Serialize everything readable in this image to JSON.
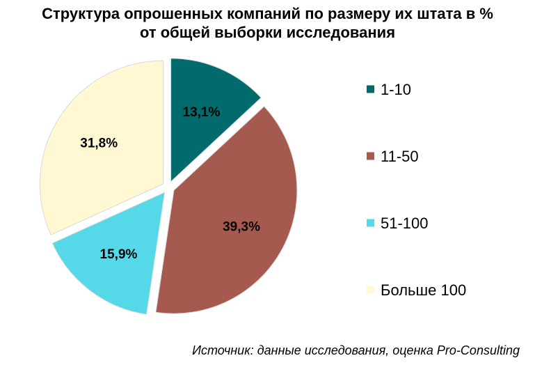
{
  "title_line1": "Структура опрошенных компаний по размеру их штата в %",
  "title_line2": "от общей выборки исследования",
  "source": "Источник: данные исследования, оценка Pro-Consulting",
  "chart_data": {
    "type": "pie",
    "title": "Структура опрошенных компаний по размеру их штата в % от общей выборки исследования",
    "exploded": true,
    "legend_position": "right",
    "slices": [
      {
        "name": "1-10",
        "value": 13.1,
        "label": "13,1%",
        "color": "#006A6D"
      },
      {
        "name": "11-50",
        "value": 39.3,
        "label": "39,3%",
        "color": "#A65A4F"
      },
      {
        "name": "51-100",
        "value": 15.9,
        "label": "15,9%",
        "color": "#55D8E7"
      },
      {
        "name": "Больше 100",
        "value": 31.8,
        "label": "31,8%",
        "color": "#FFF8D3"
      }
    ]
  }
}
